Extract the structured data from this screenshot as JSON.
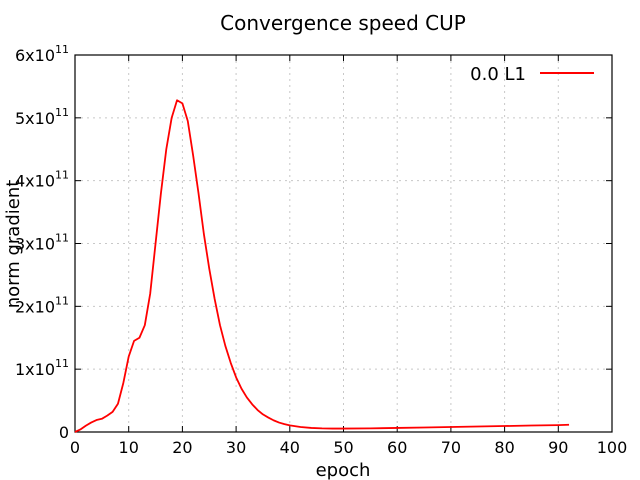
{
  "chart_data": {
    "type": "line",
    "title": "Convergence speed CUP",
    "xlabel": "epoch",
    "ylabel": "norm gradient",
    "xlim": [
      0,
      100
    ],
    "ylim": [
      0,
      600000000000
    ],
    "grid": true,
    "legend_position": "top-right",
    "x_ticks": [
      0,
      10,
      20,
      30,
      40,
      50,
      60,
      70,
      80,
      90,
      100
    ],
    "y_ticks": [
      {
        "value": 0,
        "mantissa": "0",
        "exponent": ""
      },
      {
        "value": 100000000000,
        "mantissa": "1x10",
        "exponent": "11"
      },
      {
        "value": 200000000000,
        "mantissa": "2x10",
        "exponent": "11"
      },
      {
        "value": 300000000000,
        "mantissa": "3x10",
        "exponent": "11"
      },
      {
        "value": 400000000000,
        "mantissa": "4x10",
        "exponent": "11"
      },
      {
        "value": 500000000000,
        "mantissa": "5x10",
        "exponent": "11"
      },
      {
        "value": 600000000000,
        "mantissa": "6x10",
        "exponent": "11"
      }
    ],
    "series": [
      {
        "name": "0.0 L1",
        "color": "#ff0000",
        "x": [
          0,
          1,
          2,
          3,
          4,
          5,
          6,
          7,
          8,
          9,
          10,
          11,
          12,
          13,
          14,
          15,
          16,
          17,
          18,
          19,
          20,
          21,
          22,
          23,
          24,
          25,
          26,
          27,
          28,
          29,
          30,
          31,
          32,
          33,
          34,
          35,
          36,
          37,
          38,
          39,
          40,
          42,
          44,
          46,
          48,
          50,
          55,
          60,
          65,
          70,
          75,
          80,
          85,
          90,
          92
        ],
        "y": [
          0,
          4000000000,
          10000000000,
          15000000000,
          19000000000,
          21000000000,
          26000000000,
          32000000000,
          45000000000,
          78000000000,
          120000000000,
          145000000000,
          150000000000,
          170000000000,
          220000000000,
          300000000000,
          380000000000,
          450000000000,
          500000000000,
          528000000000,
          523000000000,
          495000000000,
          440000000000,
          380000000000,
          315000000000,
          260000000000,
          212000000000,
          170000000000,
          137000000000,
          110000000000,
          87000000000,
          69000000000,
          55000000000,
          44000000000,
          35000000000,
          28000000000,
          23000000000,
          18500000000,
          15000000000,
          12500000000,
          10500000000,
          8000000000,
          6500000000,
          5800000000,
          5500000000,
          5500000000,
          5800000000,
          6500000000,
          7200000000,
          8000000000,
          8800000000,
          9500000000,
          10300000000,
          11000000000,
          11500000000
        ]
      }
    ]
  }
}
